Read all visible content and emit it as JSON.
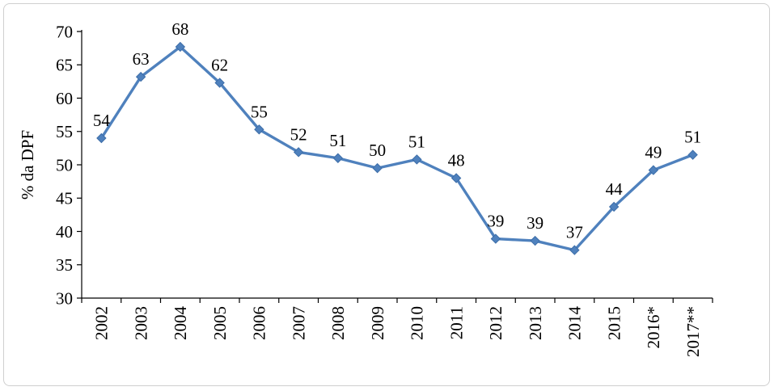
{
  "chart_data": {
    "type": "line",
    "title": "",
    "xlabel": "",
    "ylabel": "% da DPF",
    "categories": [
      "2002",
      "2003",
      "2004",
      "2005",
      "2006",
      "2007",
      "2008",
      "2009",
      "2010",
      "2011",
      "2012",
      "2013",
      "2014",
      "2015",
      "2016*",
      "2017**"
    ],
    "labels": [
      "54",
      "63",
      "68",
      "62",
      "55",
      "52",
      "51",
      "50",
      "51",
      "48",
      "39",
      "39",
      "37",
      "44",
      "49",
      "51"
    ],
    "values": [
      54.0,
      63.2,
      67.7,
      62.3,
      55.3,
      51.9,
      51.0,
      49.5,
      50.8,
      48.0,
      38.9,
      38.6,
      37.2,
      43.7,
      49.2,
      51.5
    ],
    "ylim": [
      30,
      70
    ],
    "ytick_step": 5,
    "grid": false,
    "legend": "none",
    "line_color": "#4f81bd",
    "marker_color": "#4f81bd",
    "marker_stroke_color": "#3c6da8",
    "axis_color": "#000000",
    "marker": "diamond"
  }
}
